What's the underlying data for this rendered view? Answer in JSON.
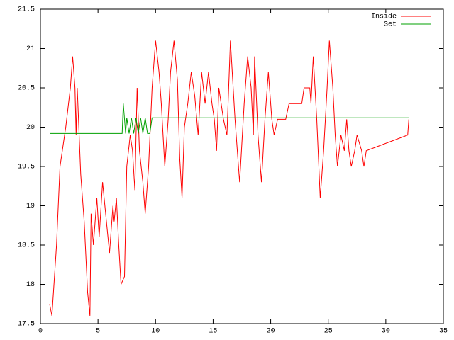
{
  "chart_data": {
    "type": "line",
    "series": [
      {
        "name": "Inside",
        "color": "#ff0000",
        "x": [
          0.8,
          1.0,
          1.4,
          1.7,
          2.2,
          2.6,
          2.8,
          3.0,
          3.1,
          3.2,
          3.5,
          3.8,
          4.1,
          4.3,
          4.4,
          4.6,
          4.9,
          5.1,
          5.4,
          5.8,
          6.0,
          6.3,
          6.4,
          6.6,
          6.8,
          7.0,
          7.3,
          7.5,
          7.8,
          8.0,
          8.2,
          8.4,
          8.6,
          8.9,
          9.1,
          9.4,
          9.7,
          10.0,
          10.3,
          10.5,
          10.8,
          11.1,
          11.3,
          11.6,
          11.9,
          12.1,
          12.3,
          12.5,
          12.8,
          13.1,
          13.4,
          13.7,
          14.0,
          14.3,
          14.6,
          14.9,
          15.1,
          15.3,
          15.5,
          15.9,
          16.2,
          16.5,
          16.9,
          17.3,
          17.7,
          18.0,
          18.3,
          18.5,
          18.6,
          18.9,
          19.2,
          19.5,
          19.8,
          20.1,
          20.3,
          20.6,
          21.3,
          21.6,
          22.7,
          22.9,
          23.4,
          23.5,
          23.7,
          24.0,
          24.3,
          24.6,
          24.9,
          25.1,
          25.4,
          25.6,
          25.8,
          26.1,
          26.4,
          26.6,
          26.8,
          27.0,
          27.3,
          27.5,
          27.9,
          28.1,
          28.3,
          31.9,
          32.0
        ],
        "values": [
          17.75,
          17.6,
          18.5,
          19.5,
          20.0,
          20.5,
          20.9,
          20.5,
          19.9,
          20.5,
          19.4,
          18.8,
          17.9,
          17.6,
          18.9,
          18.5,
          19.1,
          18.6,
          19.3,
          18.7,
          18.4,
          19.0,
          18.8,
          19.1,
          18.5,
          18.0,
          18.1,
          19.5,
          19.9,
          19.7,
          19.2,
          20.5,
          19.7,
          19.3,
          18.9,
          19.5,
          20.5,
          21.1,
          20.7,
          20.3,
          19.5,
          20.1,
          20.7,
          21.1,
          20.6,
          19.6,
          19.1,
          20.0,
          20.3,
          20.7,
          20.4,
          19.9,
          20.7,
          20.3,
          20.7,
          20.3,
          20.1,
          19.7,
          20.5,
          20.1,
          19.9,
          21.1,
          20.1,
          19.3,
          20.3,
          20.9,
          20.5,
          19.9,
          20.9,
          19.9,
          19.3,
          20.1,
          20.7,
          20.1,
          19.9,
          20.1,
          20.1,
          20.3,
          20.3,
          20.5,
          20.5,
          20.3,
          20.9,
          20.1,
          19.1,
          19.7,
          20.5,
          21.1,
          20.5,
          19.9,
          19.5,
          19.9,
          19.7,
          20.1,
          19.7,
          19.5,
          19.7,
          19.9,
          19.7,
          19.5,
          19.7,
          19.9,
          20.1
        ]
      },
      {
        "name": "Set",
        "color": "#00a000",
        "x": [
          0.8,
          7.1,
          7.2,
          7.4,
          7.5,
          7.7,
          7.9,
          8.1,
          8.3,
          8.5,
          8.7,
          8.9,
          9.1,
          9.3,
          9.5,
          9.7,
          32.0
        ],
        "values": [
          19.92,
          19.92,
          20.3,
          19.92,
          20.12,
          19.92,
          20.12,
          19.92,
          20.12,
          19.92,
          20.12,
          19.92,
          20.12,
          19.92,
          19.92,
          20.12,
          20.12
        ]
      }
    ],
    "xlim": [
      0,
      35
    ],
    "xticks": [
      0,
      5,
      10,
      15,
      20,
      25,
      30,
      35
    ],
    "ylim": [
      17.5,
      21.5
    ],
    "yticks": [
      17.5,
      18,
      18.5,
      19,
      19.5,
      20,
      20.5,
      21,
      21.5
    ],
    "grid": false,
    "legend": "top-right"
  }
}
